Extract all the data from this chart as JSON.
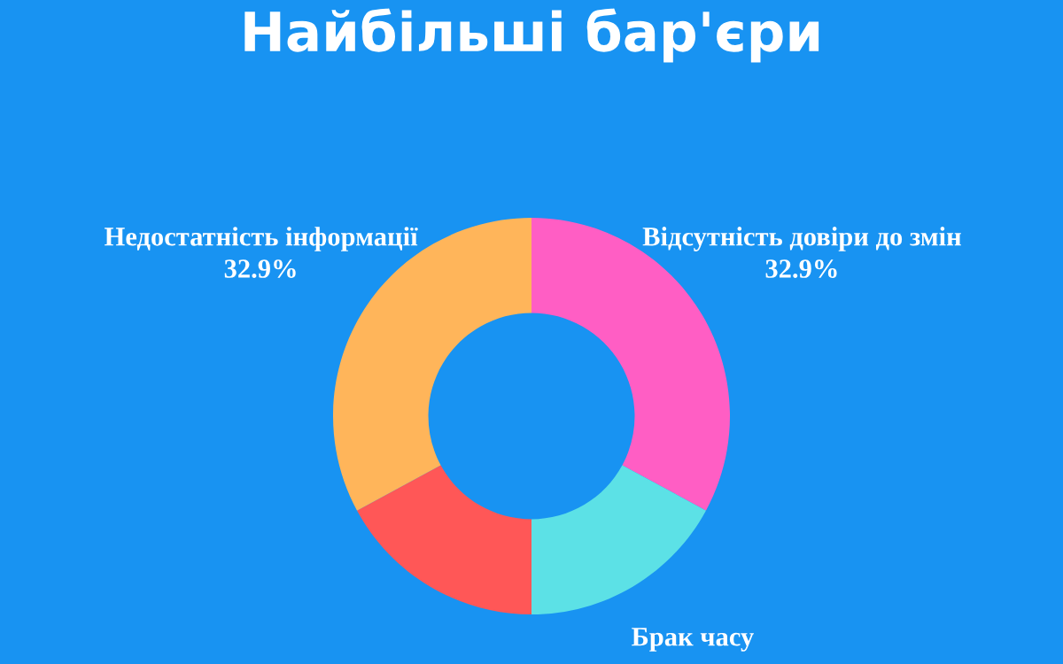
{
  "chart_data": {
    "type": "donut",
    "title": "Найбільші бар'єри",
    "categories": [
      "Відсутність довіри до змін",
      "Брак часу",
      null,
      "Недостатність інформації"
    ],
    "values": [
      32.9,
      17.1,
      17.1,
      32.9
    ],
    "colors": [
      "#ff5ec4",
      "#5ce1e6",
      "#ff5757",
      "#ffb55a"
    ],
    "value_labels": [
      "32.9%",
      null,
      null,
      "32.9%"
    ],
    "legend": false
  }
}
